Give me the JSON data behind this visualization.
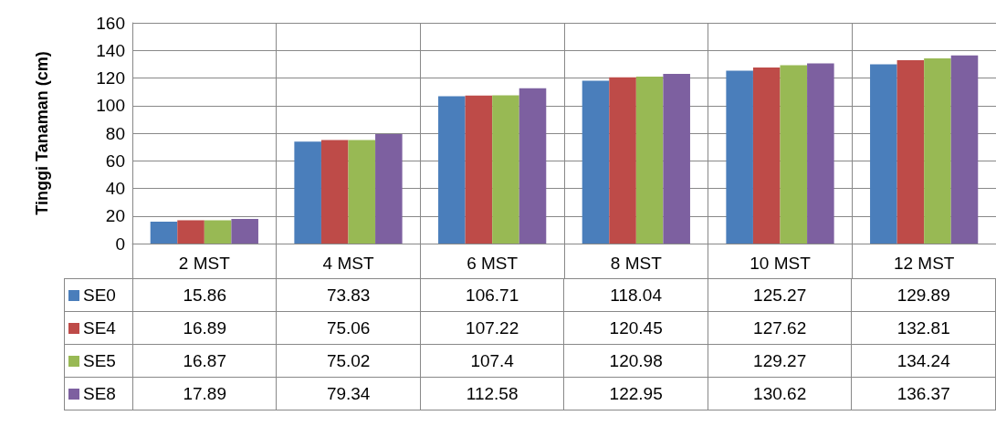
{
  "chart_data": {
    "type": "bar",
    "ylabel": "Tinggi Tanaman (cm)",
    "categories": [
      "2 MST",
      "4 MST",
      "6 MST",
      "8 MST",
      "10 MST",
      "12 MST"
    ],
    "series": [
      {
        "name": "SE0",
        "color": "#4a7ebb",
        "values": [
          15.86,
          73.83,
          106.71,
          118.04,
          125.27,
          129.89
        ]
      },
      {
        "name": "SE4",
        "color": "#be4b48",
        "values": [
          16.89,
          75.06,
          107.22,
          120.45,
          127.62,
          132.81
        ]
      },
      {
        "name": "SE5",
        "color": "#98b954",
        "values": [
          16.87,
          75.02,
          107.4,
          120.98,
          129.27,
          134.24
        ]
      },
      {
        "name": "SE8",
        "color": "#7d60a0",
        "values": [
          17.89,
          79.34,
          112.58,
          122.95,
          130.62,
          136.37
        ]
      }
    ],
    "ylim": [
      0,
      160
    ],
    "yticks": [
      0,
      20,
      40,
      60,
      80,
      100,
      120,
      140,
      160
    ],
    "grid": true,
    "data_labels": true,
    "legend": "bottom"
  }
}
